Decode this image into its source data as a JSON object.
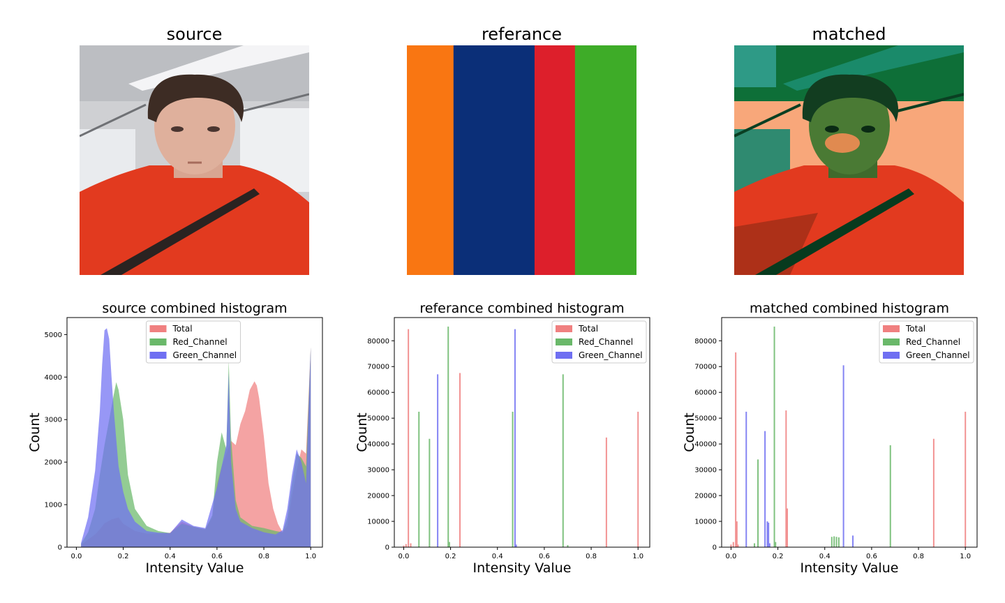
{
  "panels": [
    {
      "title": "source",
      "kind": "photo"
    },
    {
      "title": "referance",
      "kind": "stripes",
      "stripes": [
        {
          "color": "#f97612",
          "fraction": 0.203
        },
        {
          "color": "#0b2f78",
          "fraction": 0.353
        },
        {
          "color": "#dd1f2b",
          "fraction": 0.176
        },
        {
          "color": "#3eac28",
          "fraction": 0.268
        }
      ]
    },
    {
      "title": "matched",
      "kind": "photo-matched"
    }
  ],
  "chart_data": [
    {
      "type": "bar",
      "title": "source combined histogram",
      "xlabel": "Intensity Value",
      "ylabel": "Count",
      "xlim": [
        -0.04,
        1.05
      ],
      "ylim": [
        0,
        5400
      ],
      "xticks": [
        "0.0",
        "0.2",
        "0.4",
        "0.6",
        "0.8",
        "1.0"
      ],
      "yticks": [
        "0",
        "1000",
        "2000",
        "3000",
        "4000",
        "5000"
      ],
      "legend": {
        "position": "top-center",
        "entries": [
          "Total",
          "Red_Channel",
          "Green_Channel"
        ]
      },
      "series": [
        {
          "name": "Total",
          "color": "#f08080",
          "x": [
            0.02,
            0.05,
            0.08,
            0.1,
            0.12,
            0.15,
            0.18,
            0.2,
            0.25,
            0.3,
            0.35,
            0.4,
            0.45,
            0.5,
            0.55,
            0.58,
            0.6,
            0.62,
            0.64,
            0.66,
            0.68,
            0.7,
            0.72,
            0.74,
            0.76,
            0.77,
            0.78,
            0.8,
            0.82,
            0.84,
            0.86,
            0.88,
            0.9,
            0.92,
            0.94,
            0.96,
            0.98,
            1.0
          ],
          "values": [
            50,
            180,
            300,
            420,
            560,
            650,
            700,
            550,
            380,
            320,
            320,
            340,
            600,
            480,
            420,
            700,
            1500,
            1900,
            2200,
            2500,
            2400,
            2900,
            3200,
            3700,
            3900,
            3800,
            3500,
            2600,
            1500,
            900,
            550,
            350,
            500,
            1200,
            1800,
            2300,
            2200,
            4700
          ]
        },
        {
          "name": "Red_Channel",
          "color": "#6ab86a",
          "x": [
            0.02,
            0.05,
            0.08,
            0.1,
            0.12,
            0.14,
            0.16,
            0.17,
            0.18,
            0.2,
            0.22,
            0.25,
            0.3,
            0.35,
            0.4,
            0.45,
            0.5,
            0.55,
            0.58,
            0.6,
            0.62,
            0.64,
            0.65,
            0.66,
            0.68,
            0.7,
            0.75,
            0.8,
            0.85,
            0.88,
            0.9,
            0.92,
            0.94,
            0.96,
            0.98,
            1.0
          ],
          "values": [
            80,
            350,
            900,
            1700,
            2400,
            3000,
            3600,
            3880,
            3700,
            3000,
            1700,
            900,
            500,
            380,
            330,
            550,
            480,
            420,
            750,
            2000,
            2700,
            2300,
            4400,
            2600,
            1100,
            700,
            500,
            450,
            380,
            350,
            700,
            1500,
            2200,
            2100,
            1900,
            4700
          ]
        },
        {
          "name": "Green_Channel",
          "color": "#6f6ff2",
          "x": [
            0.02,
            0.05,
            0.08,
            0.1,
            0.11,
            0.12,
            0.13,
            0.14,
            0.15,
            0.16,
            0.18,
            0.2,
            0.22,
            0.25,
            0.3,
            0.35,
            0.4,
            0.45,
            0.5,
            0.55,
            0.6,
            0.62,
            0.64,
            0.65,
            0.66,
            0.68,
            0.7,
            0.75,
            0.8,
            0.85,
            0.88,
            0.9,
            0.92,
            0.94,
            0.96,
            0.98,
            1.0
          ],
          "values": [
            100,
            700,
            1800,
            3200,
            4300,
            5100,
            5150,
            4900,
            4000,
            3200,
            1900,
            1300,
            900,
            600,
            380,
            340,
            330,
            650,
            500,
            450,
            1400,
            1900,
            2400,
            4100,
            2000,
            900,
            600,
            450,
            350,
            300,
            400,
            900,
            1700,
            2300,
            2000,
            1500,
            4700
          ]
        }
      ]
    },
    {
      "type": "bar",
      "title": "referance combined histogram",
      "xlabel": "Intensity Value",
      "ylabel": "Count",
      "xlim": [
        -0.04,
        1.05
      ],
      "ylim": [
        0,
        89000
      ],
      "xticks": [
        "0.0",
        "0.2",
        "0.4",
        "0.6",
        "0.8",
        "1.0"
      ],
      "yticks": [
        "0",
        "10000",
        "20000",
        "30000",
        "40000",
        "50000",
        "60000",
        "70000",
        "80000"
      ],
      "legend": {
        "position": "top-right",
        "entries": [
          "Total",
          "Red_Channel",
          "Green_Channel"
        ]
      },
      "series": [
        {
          "name": "Total",
          "color": "#f08080",
          "x": [
            0.0,
            0.01,
            0.02,
            0.03,
            0.24,
            0.865,
            1.0
          ],
          "values": [
            600,
            1200,
            84500,
            1500,
            67500,
            42500,
            52500
          ]
        },
        {
          "name": "Red_Channel",
          "color": "#6ab86a",
          "x": [
            0.065,
            0.11,
            0.19,
            0.195,
            0.465,
            0.68,
            0.7
          ],
          "values": [
            52500,
            42000,
            85500,
            2000,
            52500,
            67000,
            800
          ]
        },
        {
          "name": "Green_Channel",
          "color": "#6f6ff2",
          "x": [
            0.145,
            0.475,
            0.48
          ],
          "values": [
            67000,
            84500,
            1000
          ]
        }
      ]
    },
    {
      "type": "bar",
      "title": "matched combined histogram",
      "xlabel": "Intensity Value",
      "ylabel": "Count",
      "xlim": [
        -0.04,
        1.05
      ],
      "ylim": [
        0,
        89000
      ],
      "xticks": [
        "0.0",
        "0.2",
        "0.4",
        "0.6",
        "0.8",
        "1.0"
      ],
      "yticks": [
        "0",
        "10000",
        "20000",
        "30000",
        "40000",
        "50000",
        "60000",
        "70000",
        "80000"
      ],
      "legend": {
        "position": "top-right",
        "entries": [
          "Total",
          "Red_Channel",
          "Green_Channel"
        ]
      },
      "series": [
        {
          "name": "Total",
          "color": "#f08080",
          "x": [
            0.0,
            0.01,
            0.02,
            0.025,
            0.03,
            0.235,
            0.24,
            0.865,
            1.0
          ],
          "values": [
            1000,
            2000,
            75500,
            10000,
            1000,
            53000,
            15000,
            42000,
            52500
          ]
        },
        {
          "name": "Red_Channel",
          "color": "#6ab86a",
          "x": [
            0.1,
            0.115,
            0.185,
            0.19,
            0.43,
            0.44,
            0.45,
            0.46,
            0.68
          ],
          "values": [
            1500,
            34000,
            85500,
            2000,
            4000,
            4200,
            4000,
            3800,
            39500
          ]
        },
        {
          "name": "Green_Channel",
          "color": "#6f6ff2",
          "x": [
            0.065,
            0.145,
            0.155,
            0.16,
            0.165,
            0.48,
            0.52
          ],
          "values": [
            52500,
            45000,
            10000,
            9500,
            1500,
            70500,
            4500
          ]
        }
      ]
    }
  ]
}
